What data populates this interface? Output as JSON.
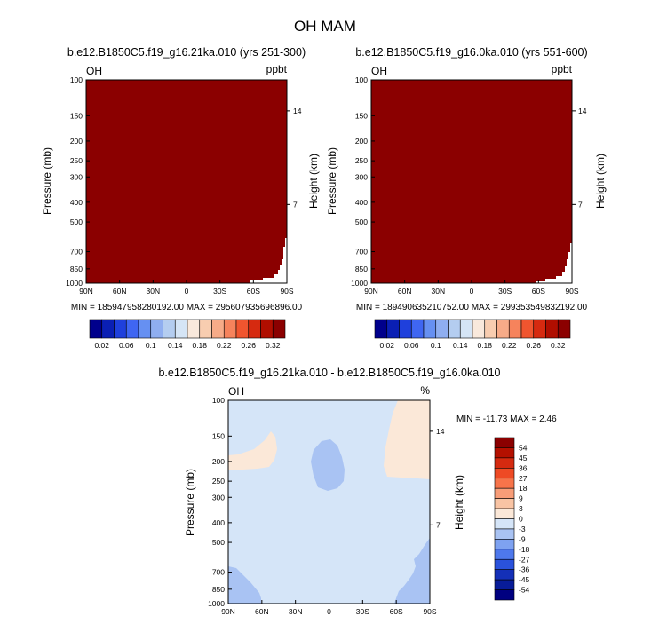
{
  "figure": {
    "title": "OH MAM"
  },
  "chart_data": [
    {
      "type": "heatmap",
      "title": "b.e12.B1850C5.f19_g16.21ka.010 (yrs 251-300)",
      "left_label": "OH",
      "right_label": "ppbt",
      "ylabel": "Pressure (mb)",
      "ylabel_right": "Height (km)",
      "x_ticks": [
        "90N",
        "60N",
        "30N",
        "0",
        "30S",
        "60S",
        "90S"
      ],
      "y_ticks": [
        "100",
        "150",
        "200",
        "250",
        "300",
        "400",
        "500",
        "700",
        "850",
        "1000"
      ],
      "y_ticks_right": [
        "14",
        "7"
      ],
      "stats": "MIN = 185947958280192.00   MAX = 295607935696896.00",
      "colorbar": {
        "labels": [
          "0.02",
          "0.06",
          "0.1",
          "0.14",
          "0.18",
          "0.22",
          "0.26",
          "0.32"
        ],
        "colors": [
          "#00008c",
          "#0a1fb4",
          "#1f40dc",
          "#3f66f2",
          "#6690f2",
          "#8faef0",
          "#b4cdf0",
          "#d5e5f6",
          "#f9e9dc",
          "#f8cdb0",
          "#f7ab88",
          "#f6835c",
          "#f0552f",
          "#d62a10",
          "#b00e00",
          "#8b0000"
        ]
      },
      "field": "all values exceed the top contour level (0.32): field is uniformly the darkest red"
    },
    {
      "type": "heatmap",
      "title": "b.e12.B1850C5.f19_g16.0ka.010 (yrs 551-600)",
      "left_label": "OH",
      "right_label": "ppbt",
      "ylabel": "Pressure (mb)",
      "ylabel_right": "Height (km)",
      "x_ticks": [
        "90N",
        "60N",
        "30N",
        "0",
        "30S",
        "60S",
        "90S"
      ],
      "y_ticks": [
        "100",
        "150",
        "200",
        "250",
        "300",
        "400",
        "500",
        "700",
        "850",
        "1000"
      ],
      "y_ticks_right": [
        "14",
        "7"
      ],
      "stats": "MIN = 189490635210752.00   MAX = 299353549832192.00",
      "colorbar": {
        "labels": [
          "0.02",
          "0.06",
          "0.1",
          "0.14",
          "0.18",
          "0.22",
          "0.26",
          "0.32"
        ],
        "colors": [
          "#00008c",
          "#0a1fb4",
          "#1f40dc",
          "#3f66f2",
          "#6690f2",
          "#8faef0",
          "#b4cdf0",
          "#d5e5f6",
          "#f9e9dc",
          "#f8cdb0",
          "#f7ab88",
          "#f6835c",
          "#f0552f",
          "#d62a10",
          "#b00e00",
          "#8b0000"
        ]
      },
      "field": "all values exceed the top contour level (0.32): field is uniformly the darkest red"
    },
    {
      "type": "heatmap",
      "title": "b.e12.B1850C5.f19_g16.21ka.010 - b.e12.B1850C5.f19_g16.0ka.010",
      "left_label": "OH",
      "right_label": "%",
      "ylabel": "Pressure (mb)",
      "ylabel_right": "Height (km)",
      "x_ticks": [
        "90N",
        "60N",
        "30N",
        "0",
        "30S",
        "60S",
        "90S"
      ],
      "y_ticks": [
        "100",
        "150",
        "200",
        "250",
        "300",
        "400",
        "500",
        "700",
        "850",
        "1000"
      ],
      "y_ticks_right": [
        "14",
        "7"
      ],
      "stats": "MIN = -11.73  MAX =   2.46",
      "colorbar": {
        "labels": [
          "54",
          "45",
          "36",
          "27",
          "18",
          "9",
          "3",
          "0",
          "-3",
          "-9",
          "-18",
          "-27",
          "-36",
          "-45",
          "-54"
        ],
        "colors": [
          "#8b0000",
          "#b41000",
          "#d52a10",
          "#ee4a24",
          "#f7744a",
          "#f89d78",
          "#f9c4a4",
          "#fbe8d8",
          "#d5e5f8",
          "#a9c3f3",
          "#7ea2f1",
          "#4e78ec",
          "#2a52dc",
          "#1430b8",
          "#081c98",
          "#000080"
        ]
      },
      "field": "mostly between 0 and -3 (light blue); patches between -3 and -9 near 0 at ~200 mb and near the surface at the poles; patches between 0 and 3 (light peach) near 80N ~170 mb and over 80S-90S at 100-200 mb"
    }
  ]
}
